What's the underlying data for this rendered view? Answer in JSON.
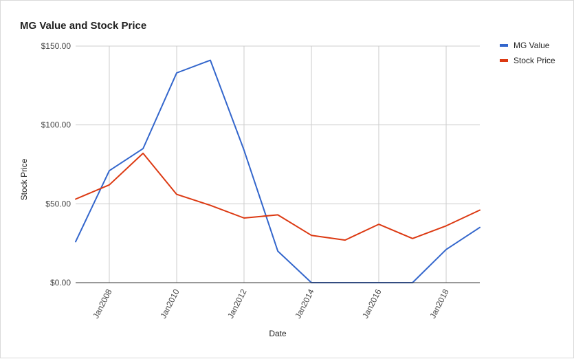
{
  "chart_data": {
    "type": "line",
    "title": "MG Value and Stock Price",
    "xlabel": "Date",
    "ylabel": "Stock Price",
    "x": [
      "2007-01-01",
      "2008-01-01",
      "2009-01-01",
      "2010-01-01",
      "2011-01-01",
      "2012-01-01",
      "2013-01-01",
      "2014-01-01",
      "2015-01-01",
      "2016-01-01",
      "2017-01-01",
      "2018-01-01",
      "2019-01-01"
    ],
    "x_range": [
      "2007-01-01",
      "2019-01-01"
    ],
    "x_ticks": [
      "2008-01-01",
      "2010-01-01",
      "2012-01-01",
      "2014-01-01",
      "2016-01-01",
      "2018-01-01"
    ],
    "x_tick_labels": [
      "Jan2008",
      "Jan2010",
      "Jan2012",
      "Jan2014",
      "Jan2016",
      "Jan2018"
    ],
    "ylim": [
      0,
      150
    ],
    "y_ticks": [
      0,
      50,
      100,
      150
    ],
    "y_tick_labels": [
      "$0.00",
      "$50.00",
      "$100.00",
      "$150.00"
    ],
    "grid": true,
    "legend_position": "right",
    "series": [
      {
        "name": "MG Value",
        "color": "#3366cc",
        "values": [
          26,
          71,
          85,
          133,
          141,
          84,
          20,
          0,
          0,
          0,
          0,
          21,
          35
        ]
      },
      {
        "name": "Stock Price",
        "color": "#dc3912",
        "values": [
          53,
          62,
          82,
          56,
          49,
          41,
          43,
          30,
          27,
          37,
          28,
          36,
          46
        ]
      }
    ]
  }
}
